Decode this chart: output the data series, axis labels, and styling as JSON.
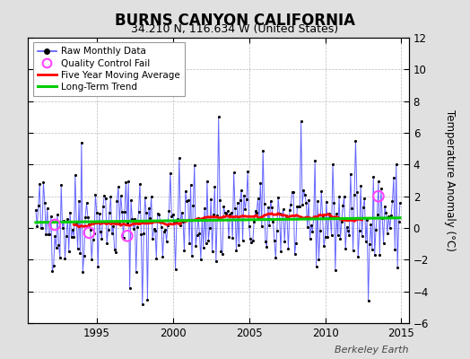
{
  "title": "BURNS CANYON CALIFORNIA",
  "subtitle": "34.210 N, 116.634 W (United States)",
  "ylabel": "Temperature Anomaly (°C)",
  "watermark": "Berkeley Earth",
  "ylim": [
    -6,
    12
  ],
  "yticks": [
    -6,
    -4,
    -2,
    0,
    2,
    4,
    6,
    8,
    10,
    12
  ],
  "xlim": [
    1990.5,
    2015.5
  ],
  "xticks": [
    1995,
    2000,
    2005,
    2010,
    2015
  ],
  "start_year": 1991,
  "end_year": 2014,
  "background_color": "#e0e0e0",
  "plot_bg_color": "#ffffff",
  "raw_color": "#5555ff",
  "dot_color": "#000000",
  "moving_avg_color": "#ff0000",
  "trend_color": "#00cc00",
  "qc_fail_color": "#ff44ff",
  "legend_raw": "Raw Monthly Data",
  "legend_qc": "Quality Control Fail",
  "legend_ma": "Five Year Moving Average",
  "legend_trend": "Long-Term Trend",
  "seed": 42,
  "n_months": 288,
  "trend_slope": 0.012,
  "trend_intercept": 0.35,
  "title_fontsize": 12,
  "subtitle_fontsize": 9,
  "label_fontsize": 8.5,
  "tick_fontsize": 8.5,
  "watermark_fontsize": 8
}
